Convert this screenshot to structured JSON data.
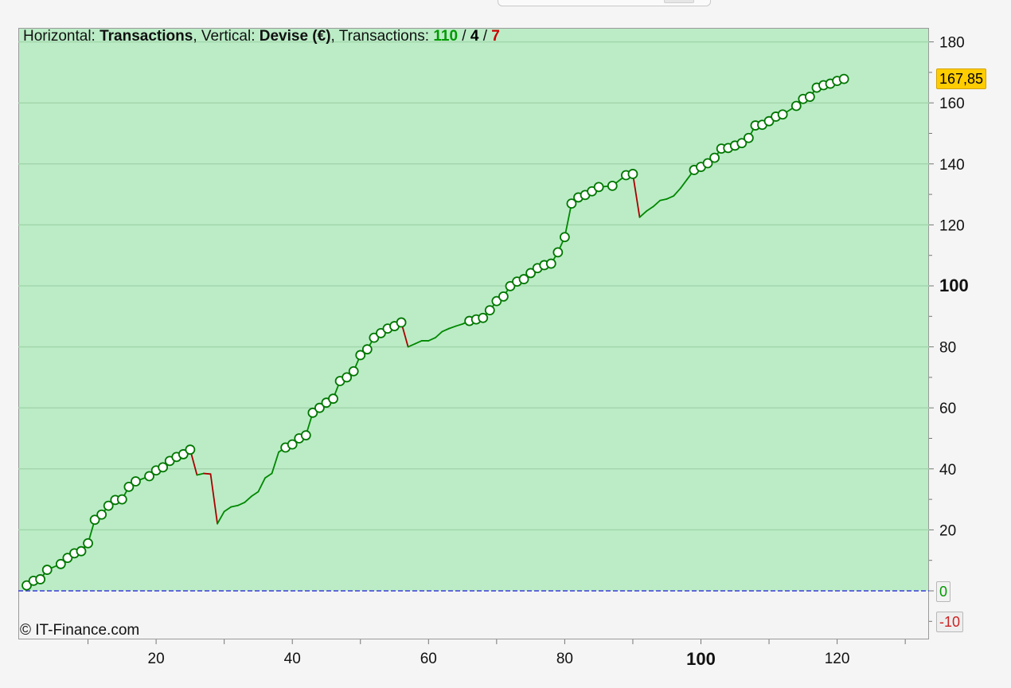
{
  "legend": {
    "horizontal_label": "Horizontal: ",
    "horizontal_value": "Transactions",
    "vertical_label": ", Vertical: ",
    "vertical_value": "Devise (€)",
    "transactions_label": ", Transactions: ",
    "count_total": "110",
    "sep1": " / ",
    "count_neutral": "4",
    "sep2": " / ",
    "count_losing": "7"
  },
  "copyright": "© IT-Finance.com",
  "badges": {
    "last_value": "167,85",
    "zero": "0",
    "negative": "-10"
  },
  "colors": {
    "plot_background": "#bbecc6",
    "gain_line": "#008800",
    "loss_line": "#aa0000",
    "marker_fill": "#ffffff",
    "marker_stroke": "#007700",
    "zero_line": "#3b3bd9"
  },
  "chart_data": {
    "type": "line",
    "title": "",
    "xlabel": "Transactions",
    "ylabel": "Devise (€)",
    "xlim": [
      0,
      134
    ],
    "ylim": [
      -16,
      185
    ],
    "x_ticks": [
      20,
      40,
      60,
      80,
      100,
      120
    ],
    "x_major_tick": 100,
    "y_ticks": [
      20,
      40,
      60,
      80,
      100,
      120,
      140,
      160,
      180
    ],
    "y_major_tick": 100,
    "grid": true,
    "last_value": 167.85,
    "series": [
      {
        "points": [
          [
            1,
            1.8,
            1
          ],
          [
            2,
            3.3,
            1
          ],
          [
            3,
            3.8,
            1
          ],
          [
            4,
            6.9,
            1
          ],
          [
            6,
            8.8,
            1
          ],
          [
            7,
            10.8,
            1
          ],
          [
            8,
            12.3,
            1
          ],
          [
            9,
            13.0,
            1
          ],
          [
            10,
            15.6,
            1
          ],
          [
            11,
            23.3,
            1
          ],
          [
            12,
            25.0,
            1
          ],
          [
            13,
            27.9,
            1
          ],
          [
            14,
            29.8,
            1
          ],
          [
            15,
            30.0,
            1
          ],
          [
            16,
            34.1,
            1
          ],
          [
            17,
            35.9,
            1
          ],
          [
            19,
            37.6,
            1
          ],
          [
            20,
            39.5,
            1
          ],
          [
            21,
            40.5,
            1
          ],
          [
            22,
            42.6,
            1
          ],
          [
            23,
            43.9,
            1
          ],
          [
            24,
            44.8,
            1
          ],
          [
            25,
            46.3,
            1
          ],
          [
            26,
            38.0,
            0
          ],
          [
            27,
            38.5,
            0
          ],
          [
            28,
            38.3,
            0
          ],
          [
            29,
            22.0,
            0
          ],
          [
            30,
            26.0,
            0
          ],
          [
            31,
            27.5,
            0
          ],
          [
            32,
            28.0,
            0
          ],
          [
            33,
            29.0,
            0
          ],
          [
            34,
            31.0,
            0
          ],
          [
            35,
            32.5,
            0
          ],
          [
            36,
            37.0,
            0
          ],
          [
            37,
            38.5,
            0
          ],
          [
            38,
            45.5,
            0
          ],
          [
            39,
            47.0,
            1
          ],
          [
            40,
            48.0,
            1
          ],
          [
            41,
            50.0,
            1
          ],
          [
            42,
            51.0,
            1
          ],
          [
            43,
            58.4,
            1
          ],
          [
            44,
            60.0,
            1
          ],
          [
            45,
            61.7,
            1
          ],
          [
            46,
            63.0,
            1
          ],
          [
            47,
            68.8,
            1
          ],
          [
            48,
            70.0,
            1
          ],
          [
            49,
            72.0,
            1
          ],
          [
            50,
            77.3,
            1
          ],
          [
            51,
            79.2,
            1
          ],
          [
            52,
            83.0,
            1
          ],
          [
            53,
            84.5,
            1
          ],
          [
            54,
            86.0,
            1
          ],
          [
            55,
            86.8,
            1
          ],
          [
            56,
            88.0,
            1
          ],
          [
            57,
            80.0,
            0
          ],
          [
            58,
            81.0,
            0
          ],
          [
            59,
            82.0,
            0
          ],
          [
            60,
            82.0,
            0
          ],
          [
            61,
            83.0,
            0
          ],
          [
            62,
            85.0,
            0
          ],
          [
            63,
            86.0,
            0
          ],
          [
            64,
            86.8,
            0
          ],
          [
            65,
            87.5,
            0
          ],
          [
            66,
            88.5,
            1
          ],
          [
            67,
            89.0,
            1
          ],
          [
            68,
            89.5,
            1
          ],
          [
            69,
            92.0,
            1
          ],
          [
            70,
            95.0,
            1
          ],
          [
            71,
            96.5,
            1
          ],
          [
            72,
            99.9,
            1
          ],
          [
            73,
            101.4,
            1
          ],
          [
            74,
            102.2,
            1
          ],
          [
            75,
            104.2,
            1
          ],
          [
            76,
            105.8,
            1
          ],
          [
            77,
            106.8,
            1
          ],
          [
            78,
            107.3,
            1
          ],
          [
            79,
            111.0,
            1
          ],
          [
            80,
            116.0,
            1
          ],
          [
            81,
            127.0,
            1
          ],
          [
            82,
            129.0,
            1
          ],
          [
            83,
            129.8,
            1
          ],
          [
            84,
            131.0,
            1
          ],
          [
            85,
            132.4,
            1
          ],
          [
            87,
            132.8,
            1
          ],
          [
            89,
            136.3,
            1
          ],
          [
            90,
            136.7,
            1
          ],
          [
            91,
            122.5,
            0
          ],
          [
            92,
            124.5,
            0
          ],
          [
            93,
            126.0,
            0
          ],
          [
            94,
            128.0,
            0
          ],
          [
            95,
            128.5,
            0
          ],
          [
            96,
            129.5,
            0
          ],
          [
            97,
            132.0,
            0
          ],
          [
            98,
            135.0,
            0
          ],
          [
            99,
            138.0,
            1
          ],
          [
            100,
            139.0,
            1
          ],
          [
            101,
            140.2,
            1
          ],
          [
            102,
            142.0,
            1
          ],
          [
            103,
            145.0,
            1
          ],
          [
            104,
            145.2,
            1
          ],
          [
            105,
            146.0,
            1
          ],
          [
            106,
            146.8,
            1
          ],
          [
            107,
            148.5,
            1
          ],
          [
            108,
            152.6,
            1
          ],
          [
            109,
            152.8,
            1
          ],
          [
            110,
            154.0,
            1
          ],
          [
            111,
            155.5,
            1
          ],
          [
            112,
            156.2,
            1
          ],
          [
            114,
            159.0,
            1
          ],
          [
            115,
            161.3,
            1
          ],
          [
            116,
            162.0,
            1
          ],
          [
            117,
            165.0,
            1
          ],
          [
            118,
            165.8,
            1
          ],
          [
            119,
            166.3,
            1
          ],
          [
            120,
            167.2,
            1
          ],
          [
            121,
            167.85,
            1
          ]
        ]
      }
    ]
  }
}
